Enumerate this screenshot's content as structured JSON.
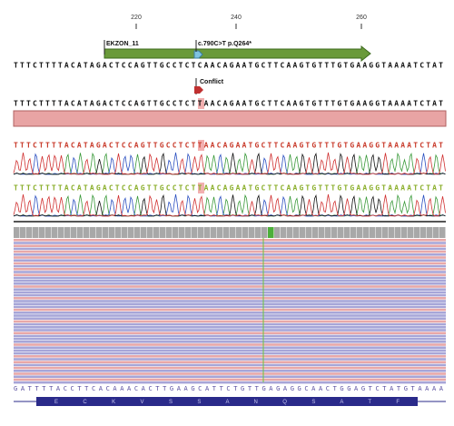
{
  "ruler": {
    "ticks": [
      "220",
      "240",
      "260"
    ]
  },
  "annotations": {
    "exon": "EKZON_11",
    "variant": "c.790C>T p.Q264*",
    "conflict": "Conflict"
  },
  "sequences": {
    "reference": "TTTCTTTTACATAGACTCCAGTTGCCTCTCAACAGAATGCTTCAAGTGTTTGTGAAGGTAAAATCTAT",
    "consensus": "TTTCTTTTACATAGACTCCAGTTGCCTCTTAACAGAATGCTTCAAGTGTTTGTGAAGGTAAAATCTAT",
    "read_forward": "TTTCTTTTACATAGACTCCAGTTGCCTCTTAACAGAATGCTTCAAGTGTTTGTGAAGGTAAAATCTAT",
    "read_reverse": "TTTCTTTTACATAGACTCCAGTTGCCTCTTAACAGAATGCTTCAAGTGTTTGTGAAGGTAAAATCTAT",
    "bottom": "GATTTTACCTTCACAAACACTTGAAGCATTCTGTTGAGAGGCAACTGGAGTCTATGTAAAA",
    "translation": "E C K V S S A N Q S A T F"
  }
}
